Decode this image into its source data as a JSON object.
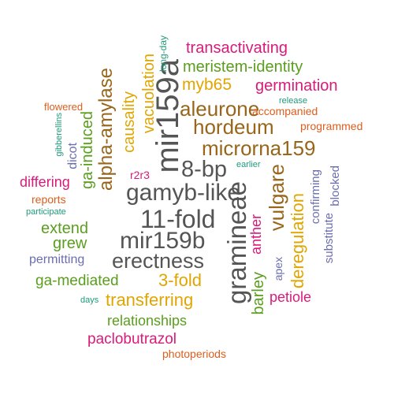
{
  "words": [
    {
      "text": "transactivating",
      "color": "magenta"
    },
    {
      "text": "meristem-identity",
      "color": "green"
    },
    {
      "text": "myb65",
      "color": "gold"
    },
    {
      "text": "germination",
      "color": "magenta"
    },
    {
      "text": "aleurone",
      "color": "brown"
    },
    {
      "text": "hordeum",
      "color": "brown"
    },
    {
      "text": "microrna159",
      "color": "brown"
    },
    {
      "text": "8-bp",
      "color": "gray"
    },
    {
      "text": "gamyb-like",
      "color": "gray"
    },
    {
      "text": "11-fold",
      "color": "gray"
    },
    {
      "text": "mir159b",
      "color": "gray"
    },
    {
      "text": "erectness",
      "color": "gray"
    },
    {
      "text": "3-fold",
      "color": "gold"
    },
    {
      "text": "transferring",
      "color": "gold"
    },
    {
      "text": "relationships",
      "color": "green"
    },
    {
      "text": "paclobutrazol",
      "color": "magenta"
    },
    {
      "text": "photoperiods",
      "color": "orange"
    },
    {
      "text": "ga-mediated",
      "color": "green"
    },
    {
      "text": "permitting",
      "color": "purple"
    },
    {
      "text": "extend",
      "color": "green"
    },
    {
      "text": "grew",
      "color": "green"
    },
    {
      "text": "reports",
      "color": "orange"
    },
    {
      "text": "participate",
      "color": "teal"
    },
    {
      "text": "differing",
      "color": "magenta"
    },
    {
      "text": "flowered",
      "color": "orange"
    },
    {
      "text": "accompanied",
      "color": "orange"
    },
    {
      "text": "release",
      "color": "teal"
    },
    {
      "text": "programmed",
      "color": "orange"
    },
    {
      "text": "earlier",
      "color": "teal"
    },
    {
      "text": "r2r3",
      "color": "magenta"
    },
    {
      "text": "petiole",
      "color": "magenta"
    },
    {
      "text": "days",
      "color": "teal"
    },
    {
      "text": "mir159a",
      "color": "gray"
    },
    {
      "text": "vacuolation",
      "color": "gold"
    },
    {
      "text": "long-day",
      "color": "teal"
    },
    {
      "text": "causality",
      "color": "gold"
    },
    {
      "text": "alpha-amylase",
      "color": "brown"
    },
    {
      "text": "ga-induced",
      "color": "green"
    },
    {
      "text": "dicot",
      "color": "purple"
    },
    {
      "text": "gibberellins",
      "color": "teal"
    },
    {
      "text": "gramineae",
      "color": "gray"
    },
    {
      "text": "vulgare",
      "color": "brown"
    },
    {
      "text": "deregulation",
      "color": "gold"
    },
    {
      "text": "anther",
      "color": "magenta"
    },
    {
      "text": "barley",
      "color": "green"
    },
    {
      "text": "apex",
      "color": "purple"
    },
    {
      "text": "confirming",
      "color": "purple"
    },
    {
      "text": "substitute",
      "color": "purple"
    },
    {
      "text": "blocked",
      "color": "purple"
    }
  ]
}
